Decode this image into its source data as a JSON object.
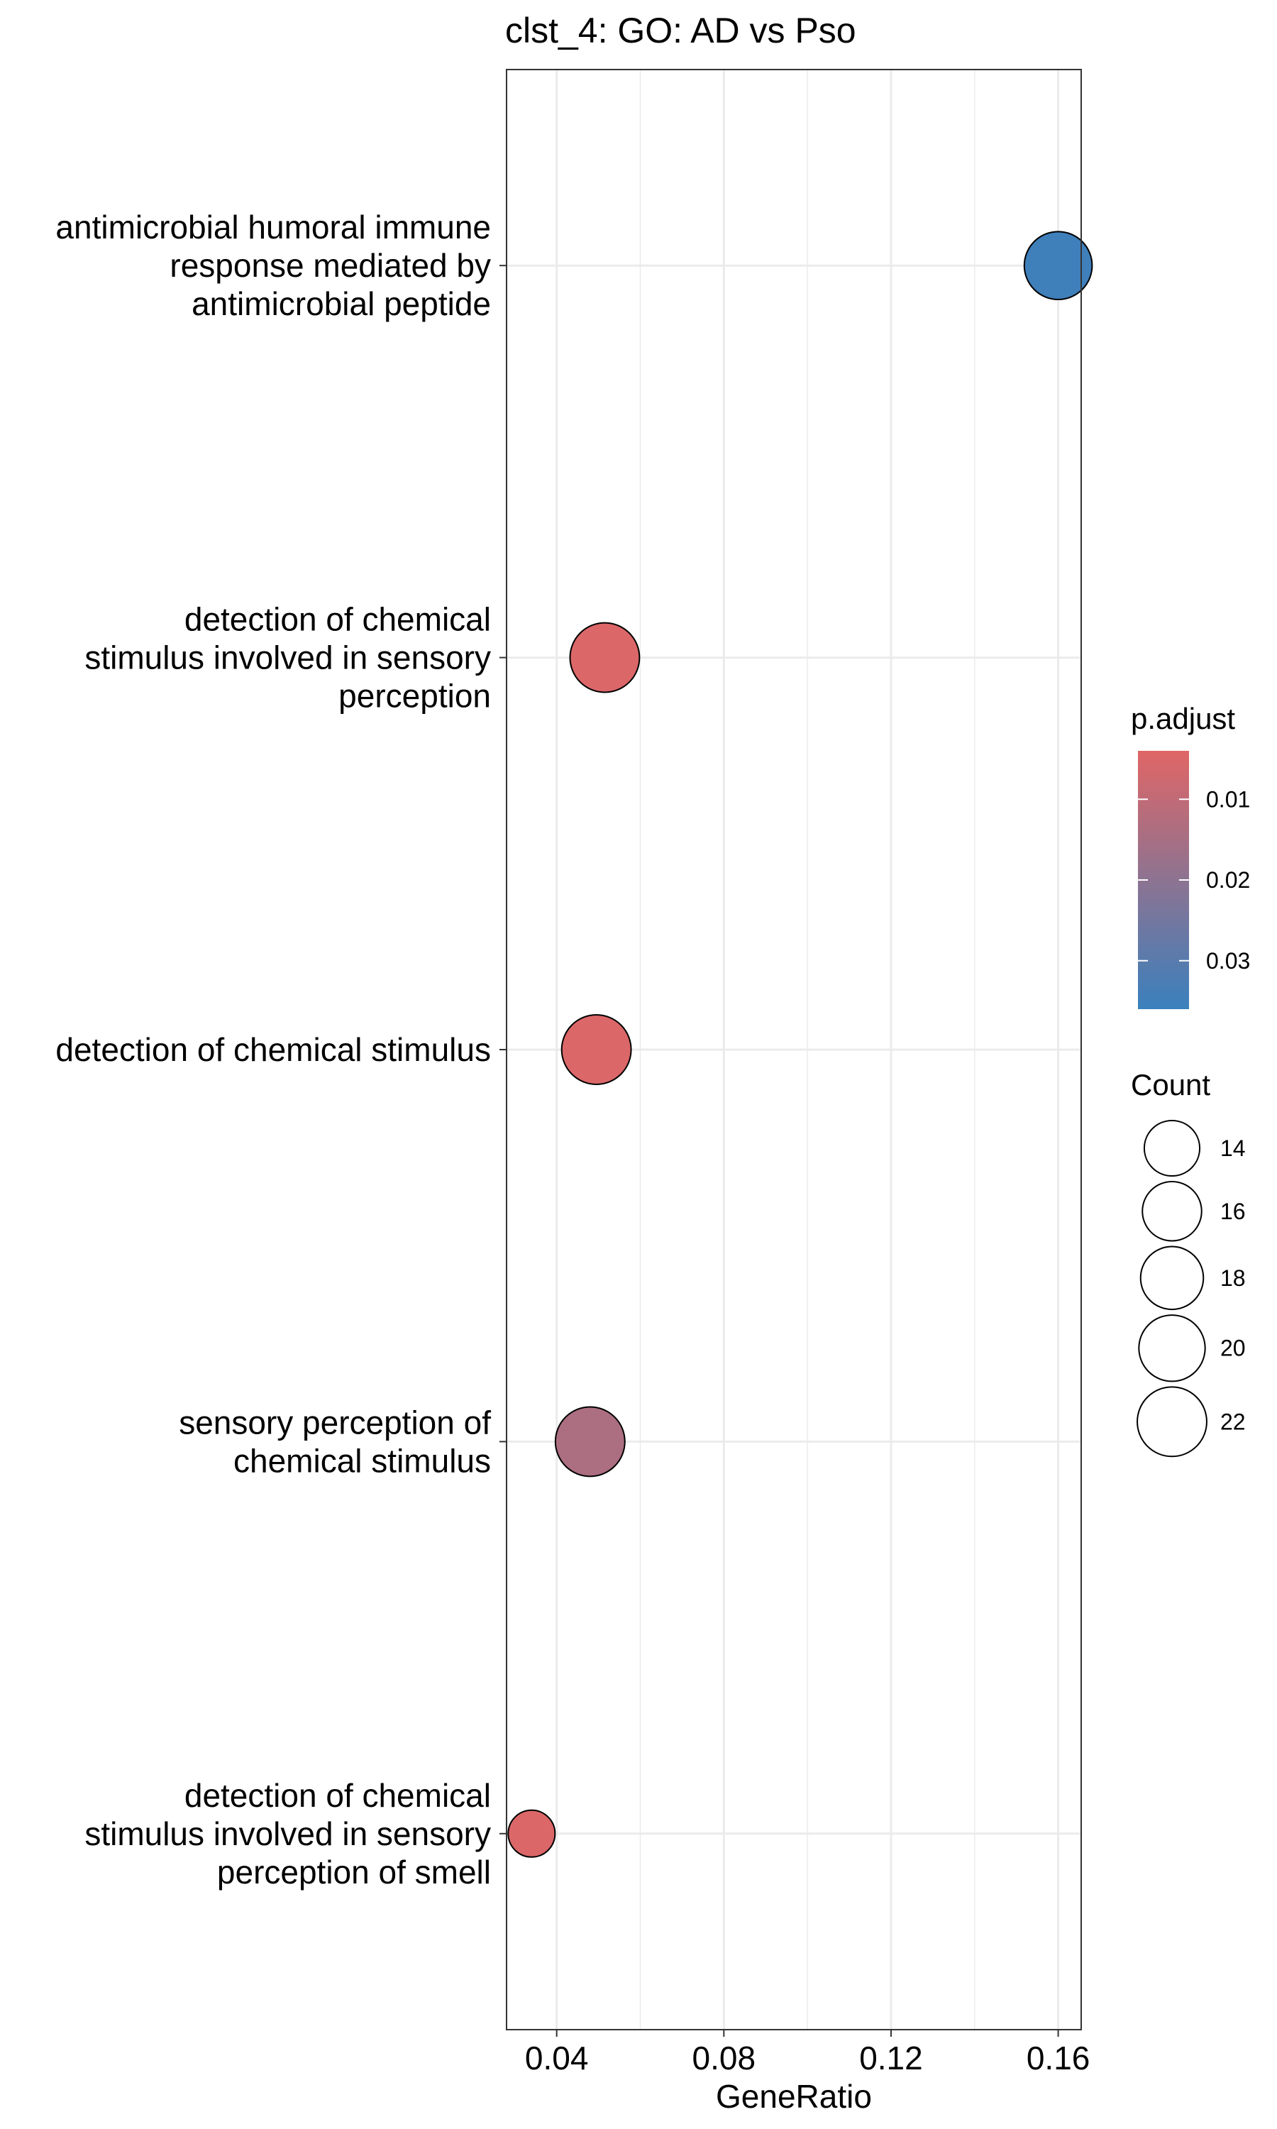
{
  "chart_data": {
    "type": "scatter",
    "title": "clst_4: GO: AD vs Pso",
    "xlabel": "GeneRatio",
    "ylabel": "",
    "xlim": [
      0.028,
      0.1655
    ],
    "xticks": [
      0.04,
      0.08,
      0.12,
      0.16
    ],
    "xtick_labels": [
      "0.04",
      "0.08",
      "0.12",
      "0.16"
    ],
    "grid": true,
    "background": "#ffffff",
    "gridline_color": "#ebebeb",
    "categories": [
      [
        "antimicrobial humoral immune",
        "response mediated by",
        "antimicrobial peptide"
      ],
      [
        "detection of chemical",
        "stimulus involved in sensory",
        "perception"
      ],
      [
        "detection of chemical stimulus"
      ],
      [
        "sensory perception of",
        "chemical stimulus"
      ],
      [
        "detection of chemical",
        "stimulus involved in sensory",
        "perception of smell"
      ]
    ],
    "points": [
      {
        "category_index": 0,
        "gene_ratio": 0.16,
        "count": 21,
        "p_adjust": 0.035
      },
      {
        "category_index": 1,
        "gene_ratio": 0.0515,
        "count": 22,
        "p_adjust": 0.005
      },
      {
        "category_index": 2,
        "gene_ratio": 0.0495,
        "count": 22,
        "p_adjust": 0.005
      },
      {
        "category_index": 3,
        "gene_ratio": 0.048,
        "count": 22,
        "p_adjust": 0.014
      },
      {
        "category_index": 4,
        "gene_ratio": 0.034,
        "count": 10,
        "p_adjust": 0.005
      }
    ],
    "legend_color": {
      "title": "p.adjust",
      "range": [
        0.004,
        0.036
      ],
      "low_color": "#e06666",
      "high_color": "#3a80bd",
      "ticks": [
        0.01,
        0.02,
        0.03
      ],
      "tick_labels": [
        "0.01",
        "0.02",
        "0.03"
      ]
    },
    "legend_size": {
      "title": "Count",
      "values": [
        14,
        16,
        18,
        20,
        22
      ],
      "labels": [
        "14",
        "16",
        "18",
        "20",
        "22"
      ]
    },
    "legend_placement": "right"
  }
}
